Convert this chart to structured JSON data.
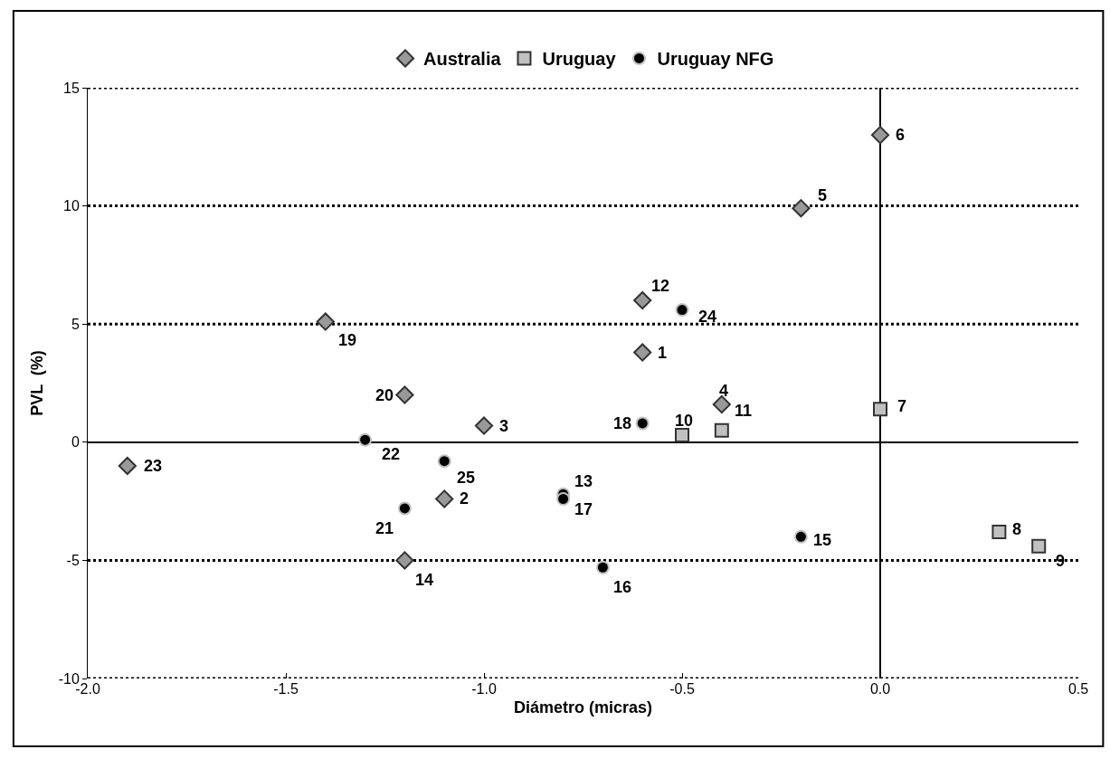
{
  "chart_data": {
    "type": "scatter",
    "xlabel": "Diámetro (micras)",
    "ylabel": "PVL  (%)",
    "xlim": [
      -2.0,
      0.5
    ],
    "xticks": [
      {
        "value": -2.0,
        "label": "-2.0"
      },
      {
        "value": -1.5,
        "label": "-1.5"
      },
      {
        "value": -1.0,
        "label": "-1.0"
      },
      {
        "value": -0.5,
        "label": "-0.5"
      },
      {
        "value": 0,
        "label": "0.0"
      },
      {
        "value": 0.5,
        "label": "0.5"
      }
    ],
    "ylim": [
      -10,
      15
    ],
    "yticks": [
      -10,
      -5,
      0,
      5,
      10,
      15
    ],
    "grid": "y",
    "line_style": "dotted",
    "legend": "top",
    "ref_lines": [
      {
        "axis": "x",
        "value": 0,
        "color": "#000000",
        "line_style": "solid"
      }
    ],
    "series": [
      {
        "name": "Australia",
        "color": "#999999",
        "marker": "diamond",
        "x": [
          -0.6,
          -1.1,
          -1.0,
          -0.4,
          -0.2,
          0.0,
          -0.6,
          -1.2,
          -1.4,
          -1.2,
          -1.9
        ],
        "values": [
          3.8,
          -2.4,
          0.7,
          1.6,
          9.9,
          13.0,
          6.0,
          -5.0,
          5.1,
          2.0,
          -1.0
        ]
      },
      {
        "name": "Uruguay",
        "color": "#c0c0c0",
        "marker": "square",
        "x": [
          0.0,
          0.3,
          0.4,
          -0.5,
          -0.4
        ],
        "values": [
          1.4,
          -3.8,
          -4.4,
          0.3,
          0.5
        ]
      },
      {
        "name": "Uruguay NFG",
        "color": "#000000",
        "marker": "circle",
        "x": [
          -0.8,
          -0.2,
          -0.7,
          -0.8,
          -0.6,
          -1.2,
          -1.3,
          -0.5,
          -1.1
        ],
        "values": [
          -2.2,
          -4.0,
          -5.3,
          -2.4,
          0.8,
          -2.8,
          0.1,
          5.6,
          -0.8
        ]
      }
    ],
    "annotations": [
      {
        "text": "1",
        "x": -0.6,
        "y": 3.8
      },
      {
        "text": "2",
        "x": -1.1,
        "y": -2.4
      },
      {
        "text": "3",
        "x": -1.0,
        "y": 0.7
      },
      {
        "text": "4",
        "x": -0.4,
        "y": 1.6
      },
      {
        "text": "5",
        "x": -0.2,
        "y": 9.9
      },
      {
        "text": "6",
        "x": 0.0,
        "y": 13.0
      },
      {
        "text": "7",
        "x": 0.0,
        "y": 1.4
      },
      {
        "text": "8",
        "x": 0.3,
        "y": -3.8
      },
      {
        "text": "9",
        "x": 0.4,
        "y": -4.4
      },
      {
        "text": "10",
        "x": -0.5,
        "y": 0.3
      },
      {
        "text": "11",
        "x": -0.4,
        "y": 0.5
      },
      {
        "text": "12",
        "x": -0.6,
        "y": 6.0
      },
      {
        "text": "13",
        "x": -0.8,
        "y": -2.2
      },
      {
        "text": "14",
        "x": -1.2,
        "y": -5.0
      },
      {
        "text": "15",
        "x": -0.2,
        "y": -4.0
      },
      {
        "text": "16",
        "x": -0.7,
        "y": -5.3
      },
      {
        "text": "17",
        "x": -0.8,
        "y": -2.4
      },
      {
        "text": "18",
        "x": -0.6,
        "y": 0.8
      },
      {
        "text": "19",
        "x": -1.4,
        "y": 5.1
      },
      {
        "text": "20",
        "x": -1.2,
        "y": 2.0
      },
      {
        "text": "21",
        "x": -1.2,
        "y": -2.8
      },
      {
        "text": "22",
        "x": -1.3,
        "y": 0.1
      },
      {
        "text": "23",
        "x": -1.9,
        "y": -1.0
      },
      {
        "text": "24",
        "x": -0.5,
        "y": 5.6
      },
      {
        "text": "25",
        "x": -1.1,
        "y": -0.8
      }
    ]
  }
}
